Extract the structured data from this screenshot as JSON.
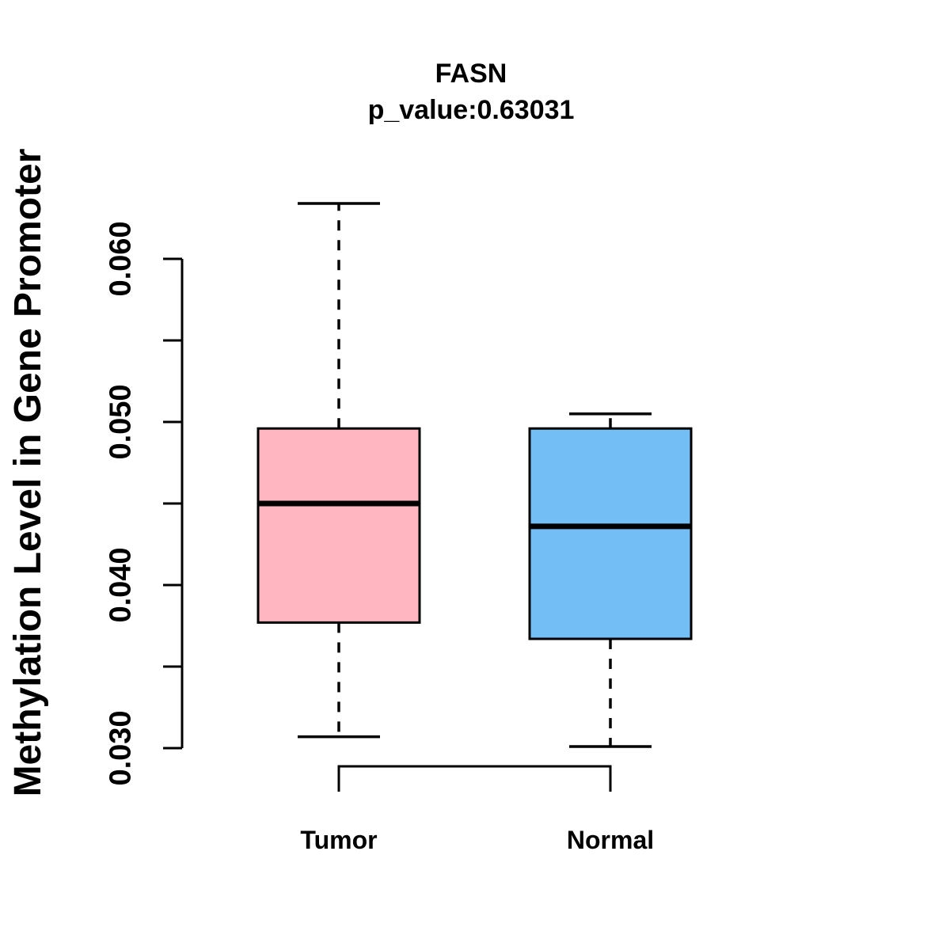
{
  "chart_data": {
    "type": "boxplot",
    "title": "FASN",
    "subtitle": "p_value:0.63031",
    "ylabel": "Methylation Level in Gene Promoter",
    "xlabel": "",
    "categories": [
      "Tumor",
      "Normal"
    ],
    "series": [
      {
        "name": "Tumor",
        "fill_color": "#FFB6C1",
        "lower_whisker": 0.0307,
        "q1": 0.0377,
        "median": 0.045,
        "q3": 0.0496,
        "upper_whisker": 0.0634
      },
      {
        "name": "Normal",
        "fill_color": "#73BEF5",
        "lower_whisker": 0.0301,
        "q1": 0.0367,
        "median": 0.0436,
        "q3": 0.0496,
        "upper_whisker": 0.0505
      }
    ],
    "y_axis": {
      "min": 0.03,
      "max": 0.06,
      "minor_tick_step": 0.005,
      "labeled_ticks": [
        0.03,
        0.04,
        0.05,
        0.06
      ],
      "tick_labels": [
        "0.030",
        "0.040",
        "0.050",
        "0.060"
      ]
    },
    "grid": false,
    "legend": false,
    "line_color": "#000000",
    "background_color": "#FFFFFF",
    "comparison_bracket": {
      "between": [
        "Tumor",
        "Normal"
      ]
    }
  }
}
